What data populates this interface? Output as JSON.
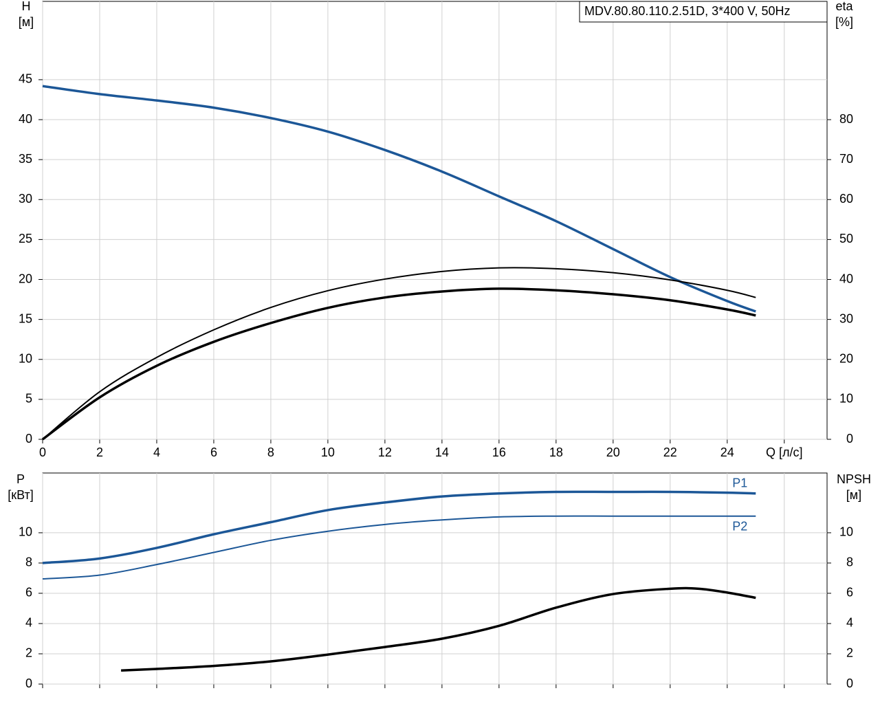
{
  "chart_data": [
    {
      "type": "line",
      "title": "MDV.80.80.110.2.51D, 3*400 V, 50Hz",
      "ylabel": [
        "H",
        "[м]"
      ],
      "y2label": [
        "eta",
        "[%]"
      ],
      "xlim": [
        0,
        27.5
      ],
      "xticks": [
        0,
        2,
        4,
        6,
        8,
        10,
        12,
        14,
        16,
        18,
        20,
        22,
        24,
        {
          "value": 26,
          "label": "Q [л/с]"
        }
      ],
      "ylim": [
        0,
        54.8
      ],
      "yticks": [
        0,
        5,
        10,
        15,
        20,
        25,
        30,
        35,
        40,
        45
      ],
      "y2lim": [
        0,
        109.6
      ],
      "y2ticks": [
        0,
        10,
        20,
        30,
        40,
        50,
        60,
        70,
        80
      ],
      "grid": true,
      "series": [
        {
          "color": "#1c5797",
          "width": 3.5,
          "x": [
            0,
            2,
            4,
            6,
            8,
            10,
            12,
            14,
            16,
            18,
            20,
            22,
            24,
            25
          ],
          "values": [
            44.2,
            43.2,
            42.4,
            41.5,
            40.2,
            38.5,
            36.2,
            33.5,
            30.4,
            27.3,
            23.8,
            20.3,
            17.3,
            16.0
          ]
        },
        {
          "color": "#000000",
          "width": 2,
          "axis": "y2",
          "x": [
            0,
            2,
            4,
            6,
            8,
            10,
            12,
            14,
            16,
            18,
            20,
            22,
            24,
            25
          ],
          "values": [
            0,
            11.9,
            20.5,
            27.4,
            33.0,
            37.2,
            40.1,
            42.0,
            42.9,
            42.7,
            41.7,
            39.9,
            37.3,
            35.5
          ]
        },
        {
          "color": "#000000",
          "width": 3.5,
          "axis": "y2",
          "x": [
            0,
            2,
            4,
            6,
            8,
            10,
            12,
            14,
            16,
            18,
            20,
            22,
            24,
            25
          ],
          "values": [
            0,
            10.5,
            18.4,
            24.4,
            29.1,
            32.9,
            35.5,
            37.0,
            37.7,
            37.3,
            36.3,
            34.8,
            32.5,
            31.0
          ]
        }
      ]
    },
    {
      "type": "line",
      "ylabel": [
        "P",
        "[кВт]"
      ],
      "y2label": [
        "NPSH",
        "[м]"
      ],
      "xlim": [
        0,
        27.5
      ],
      "xticks": [
        0,
        2,
        4,
        6,
        8,
        10,
        12,
        14,
        16,
        18,
        20,
        22,
        24,
        26
      ],
      "ylim": [
        0,
        13.95
      ],
      "yticks": [
        0,
        2,
        4,
        6,
        8,
        10
      ],
      "y2lim": [
        0,
        13.95
      ],
      "y2ticks": [
        0,
        2,
        4,
        6,
        8,
        10
      ],
      "grid": true,
      "series": [
        {
          "name": "P1",
          "color": "#1c5797",
          "width": 3.5,
          "x": [
            0,
            2,
            4,
            6,
            8,
            10,
            12,
            14,
            16,
            18,
            20,
            22,
            24,
            25
          ],
          "values": [
            8.0,
            8.3,
            9.0,
            9.9,
            10.7,
            11.5,
            12.0,
            12.4,
            12.6,
            12.7,
            12.7,
            12.7,
            12.65,
            12.6
          ]
        },
        {
          "name": "P2",
          "color": "#1c5797",
          "width": 2,
          "x": [
            0,
            2,
            4,
            6,
            8,
            10,
            12,
            14,
            16,
            18,
            20,
            22,
            24,
            25
          ],
          "values": [
            6.95,
            7.2,
            7.9,
            8.7,
            9.5,
            10.1,
            10.55,
            10.85,
            11.05,
            11.1,
            11.1,
            11.1,
            11.1,
            11.1
          ]
        },
        {
          "color": "#000000",
          "width": 3.5,
          "axis": "y2",
          "x": [
            2.75,
            4,
            6,
            8,
            10,
            12,
            14,
            16,
            18,
            20,
            22,
            23,
            24,
            25
          ],
          "values": [
            0.9,
            1.0,
            1.2,
            1.5,
            1.95,
            2.45,
            3.0,
            3.85,
            5.05,
            5.95,
            6.3,
            6.3,
            6.05,
            5.7
          ]
        }
      ]
    }
  ]
}
